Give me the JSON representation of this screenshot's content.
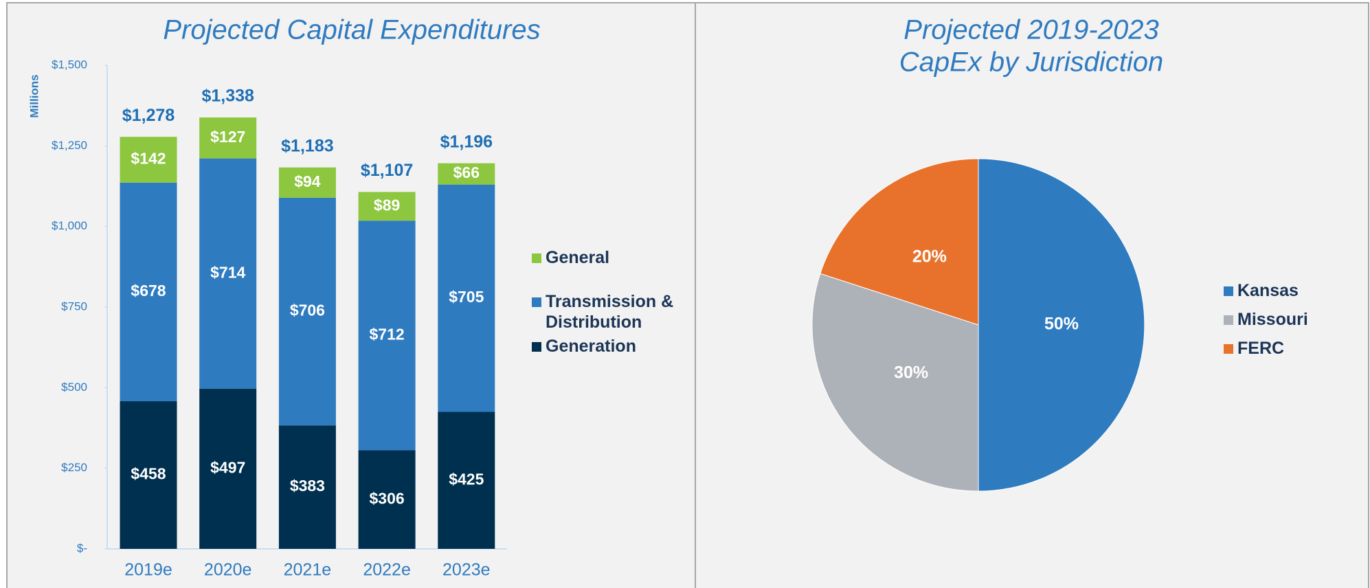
{
  "chart_data": [
    {
      "type": "bar",
      "stacked": true,
      "title": "Projected Capital Expenditures",
      "y_label": "Millions",
      "categories": [
        "2019e",
        "2020e",
        "2021e",
        "2022e",
        "2023e"
      ],
      "series": [
        {
          "name": "Generation",
          "color": "#00304f",
          "values": [
            458,
            497,
            383,
            306,
            425
          ],
          "value_labels": [
            "$458",
            "$497",
            "$383",
            "$306",
            "$425"
          ]
        },
        {
          "name": "Transmission & Distribution",
          "color": "#2f7bc0",
          "values": [
            678,
            714,
            706,
            712,
            705
          ],
          "value_labels": [
            "$678",
            "$714",
            "$706",
            "$712",
            "$705"
          ]
        },
        {
          "name": "General",
          "color": "#8dc63f",
          "values": [
            142,
            127,
            94,
            89,
            66
          ],
          "value_labels": [
            "$142",
            "$127",
            "$94",
            "$89",
            "$66"
          ]
        }
      ],
      "totals": [
        1278,
        1338,
        1183,
        1107,
        1196
      ],
      "total_labels": [
        "$1,278",
        "$1,338",
        "$1,183",
        "$1,107",
        "$1,196"
      ],
      "ylim": [
        0,
        1500
      ],
      "yticks": [
        {
          "value": 0,
          "label": "$-"
        },
        {
          "value": 250,
          "label": "$250"
        },
        {
          "value": 500,
          "label": "$500"
        },
        {
          "value": 750,
          "label": "$750"
        },
        {
          "value": 1000,
          "label": "$1,000"
        },
        {
          "value": 1250,
          "label": "$1,250"
        },
        {
          "value": 1500,
          "label": "$1,500"
        }
      ],
      "grid": false,
      "legend": "right"
    },
    {
      "type": "pie",
      "title": [
        "Projected 2019-2023",
        "CapEx by Jurisdiction"
      ],
      "categories": [
        "Kansas",
        "Missouri",
        "FERC"
      ],
      "values": [
        50,
        30,
        20
      ],
      "value_labels": [
        "50%",
        "30%",
        "20%"
      ],
      "colors": [
        "#2f7bc0",
        "#adb1b8",
        "#e8722c"
      ],
      "legend": "right"
    }
  ]
}
